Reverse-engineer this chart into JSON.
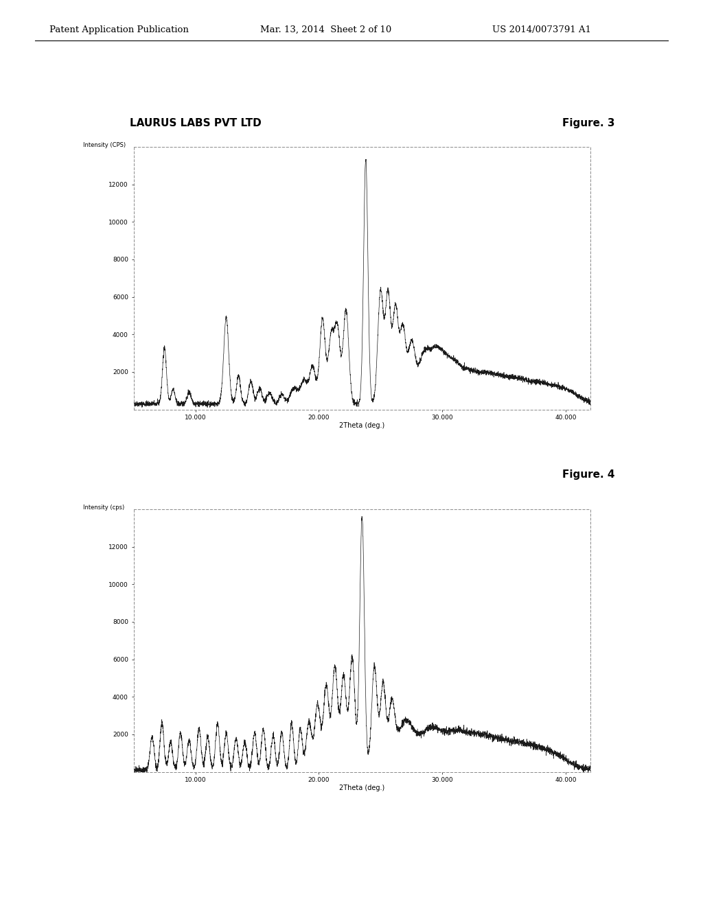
{
  "header_left": "Patent Application Publication",
  "header_mid": "Mar. 13, 2014  Sheet 2 of 10",
  "header_right": "US 2014/0073791 A1",
  "fig3_label": "LAURUS LABS PVT LTD",
  "fig3_title": "Figure. 3",
  "fig4_title": "Figure. 4",
  "fig3_ylabel": "Intensity (CPS)",
  "fig3_xlabel": "2Theta (deg.)",
  "fig4_ylabel": "Intensity (cps)",
  "fig4_xlabel": "2Theta (deg.)",
  "background_color": "#ffffff",
  "line_color": "#1a1a1a"
}
